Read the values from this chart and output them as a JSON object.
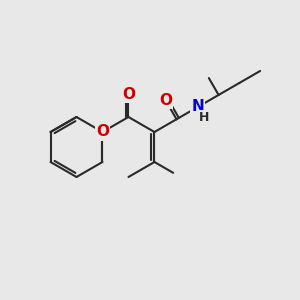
{
  "bg_color": "#e8e8e8",
  "bond_color": "#2a2a2a",
  "bond_width": 1.5,
  "atom_colors": {
    "O": "#cc0000",
    "N": "#0000cc",
    "C": "#2a2a2a"
  },
  "xlim": [
    0,
    10
  ],
  "ylim": [
    0,
    10
  ]
}
